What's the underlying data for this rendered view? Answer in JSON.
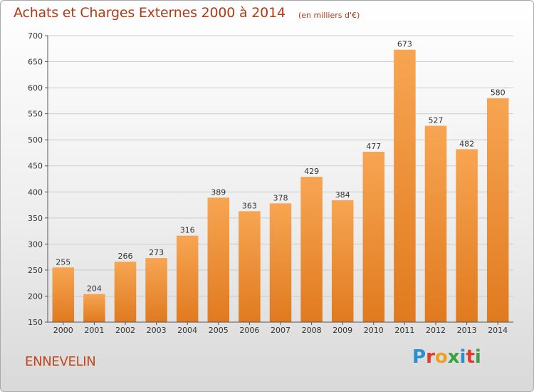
{
  "header": {
    "title": "Achats et Charges Externes 2000 à 2014",
    "subtitle": "(en milliers d'€)"
  },
  "footer": {
    "city": "ENNEVELIN",
    "logo_letters": [
      "P",
      "r",
      "o",
      "x",
      "i",
      "t",
      "i"
    ],
    "logo_colors": [
      "#2a8fd0",
      "#e23b2a",
      "#f0a020",
      "#3aa040",
      "#2a8fd0",
      "#e23b2a",
      "#3aa040"
    ]
  },
  "chart_data": {
    "type": "bar",
    "title": "Achats et Charges Externes 2000 à 2014",
    "subtitle": "(en milliers d'€)",
    "categories": [
      "2000",
      "2001",
      "2002",
      "2003",
      "2004",
      "2005",
      "2006",
      "2007",
      "2008",
      "2009",
      "2010",
      "2011",
      "2012",
      "2013",
      "2014"
    ],
    "values": [
      255,
      204,
      266,
      273,
      316,
      389,
      363,
      378,
      429,
      384,
      477,
      673,
      527,
      482,
      580
    ],
    "ylim": [
      150,
      700
    ],
    "yticks": [
      150,
      200,
      250,
      300,
      350,
      400,
      450,
      500,
      550,
      600,
      650,
      700
    ],
    "grid": true,
    "bar_color_top": "#f7a552",
    "bar_color_bottom": "#e07a1f",
    "grid_color": "#cccccc"
  }
}
